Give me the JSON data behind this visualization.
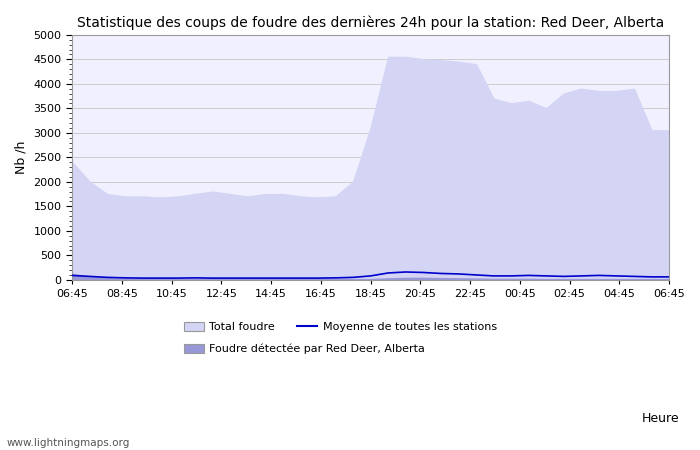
{
  "title": "Statistique des coups de foudre des dernières 24h pour la station: Red Deer, Alberta",
  "xlabel": "Heure",
  "ylabel": "Nb /h",
  "ylim": [
    0,
    5000
  ],
  "yticks": [
    0,
    500,
    1000,
    1500,
    2000,
    2500,
    3000,
    3500,
    4000,
    4500,
    5000
  ],
  "xtick_labels": [
    "06:45",
    "08:45",
    "10:45",
    "12:45",
    "14:45",
    "16:45",
    "18:45",
    "20:45",
    "22:45",
    "00:45",
    "02:45",
    "04:45",
    "06:45"
  ],
  "bg_color": "#ffffff",
  "plot_bg_color": "#f0f0ff",
  "grid_color": "#cccccc",
  "total_color": "#d4d4f4",
  "local_color": "#9898d8",
  "mean_color": "#0000cc",
  "watermark": "www.lightningmaps.org",
  "legend_total": "Total foudre",
  "legend_mean": "Moyenne de toutes les stations",
  "legend_local": "Foudre détectée par Red Deer, Alberta",
  "total_values": [
    2400,
    2000,
    1750,
    1700,
    1700,
    1680,
    1700,
    1750,
    1800,
    1750,
    1700,
    1750,
    1750,
    1700,
    1680,
    1700,
    2000,
    3100,
    4550,
    4550,
    4500,
    4480,
    4450,
    4400,
    3700,
    3600,
    3650,
    3500,
    3800,
    3900,
    3850,
    3850,
    3900,
    3050,
    3050
  ],
  "local_values": [
    120,
    60,
    30,
    20,
    15,
    15,
    15,
    15,
    15,
    15,
    15,
    15,
    15,
    15,
    15,
    15,
    15,
    15,
    30,
    40,
    40,
    35,
    30,
    25,
    20,
    20,
    20,
    15,
    15,
    15,
    15,
    15,
    15,
    15,
    15
  ],
  "mean_values": [
    90,
    70,
    50,
    40,
    35,
    35,
    35,
    40,
    35,
    35,
    35,
    35,
    35,
    35,
    35,
    40,
    50,
    80,
    140,
    160,
    150,
    130,
    120,
    100,
    80,
    80,
    90,
    80,
    70,
    80,
    90,
    80,
    70,
    60,
    60
  ]
}
